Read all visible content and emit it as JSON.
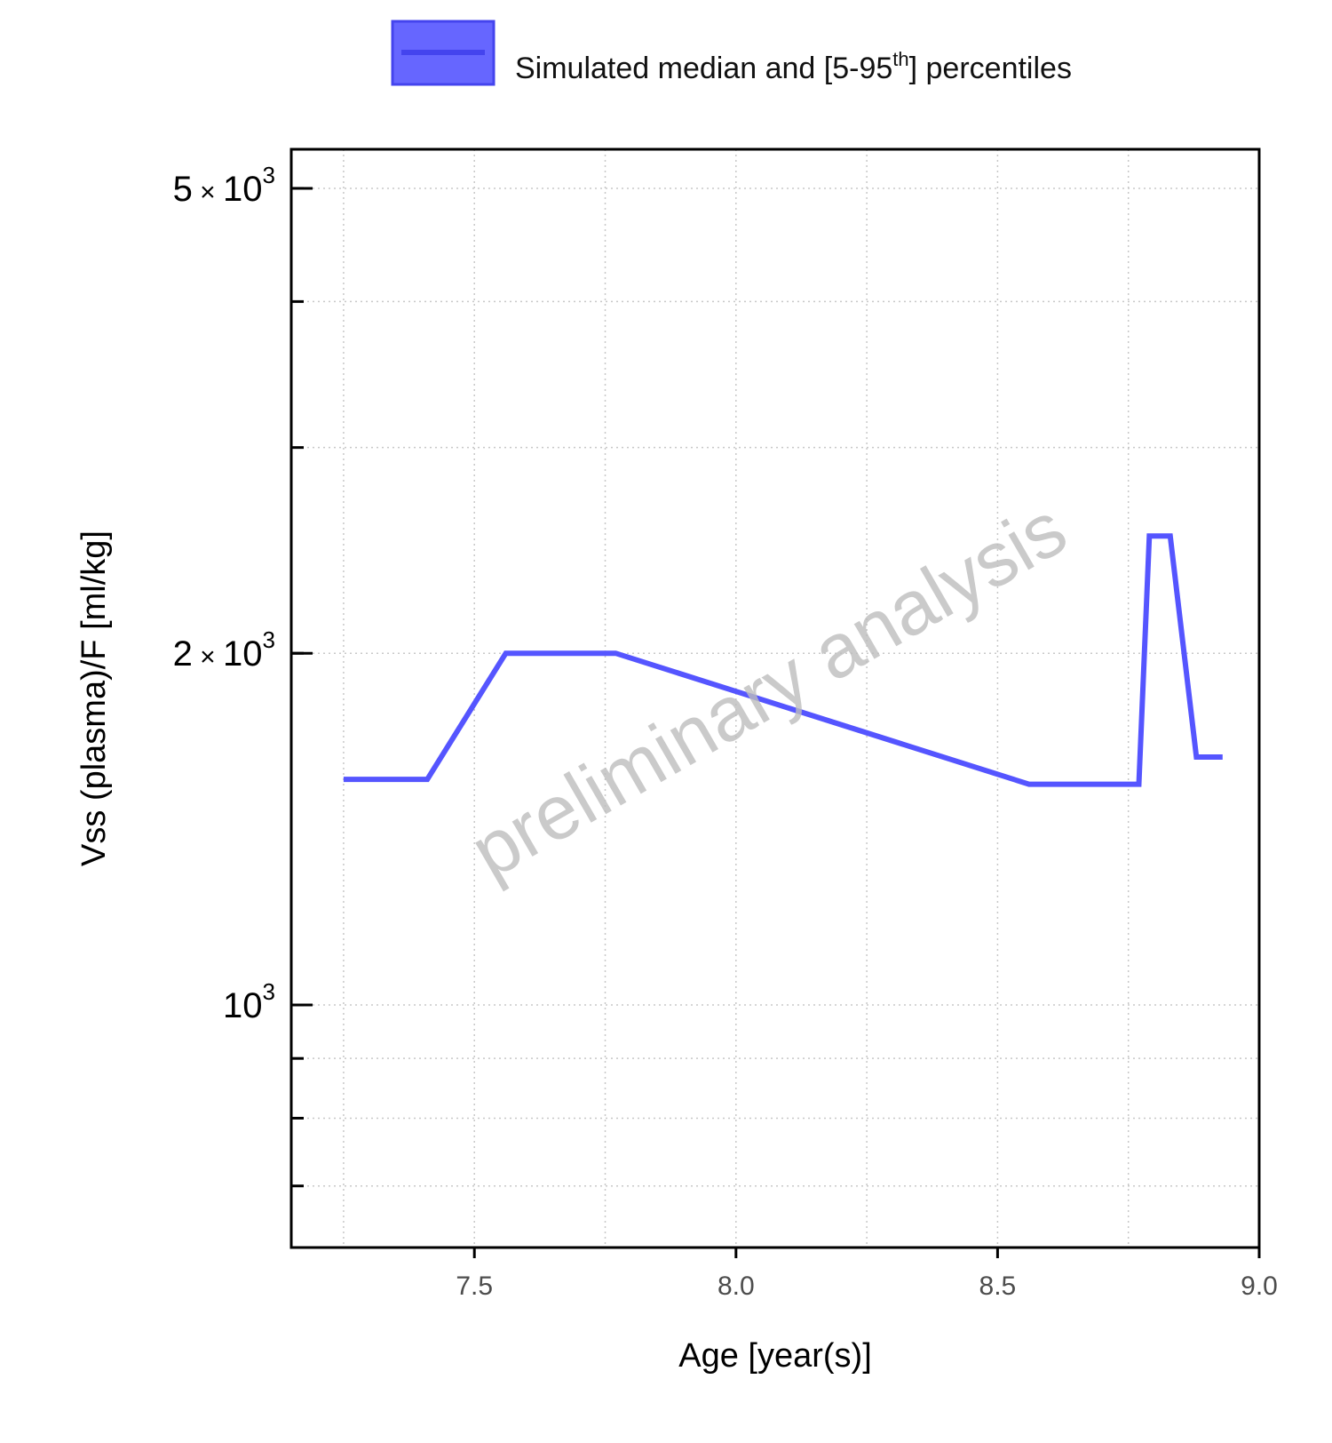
{
  "chart_data": {
    "type": "line",
    "xlabel": "Age [year(s)]",
    "ylabel": "Vss (plasma)/F [ml/kg]",
    "xlim": [
      7.15,
      9.0
    ],
    "ylim": [
      620,
      5400
    ],
    "y_scale": "log",
    "grid": true,
    "legend_position": "top",
    "watermark": "preliminary analysis",
    "x_ticks": [
      7.5,
      8.0,
      8.5,
      9.0
    ],
    "x_tick_labels": [
      "7.5",
      "8.0",
      "8.5",
      "9.0"
    ],
    "y_ticks": [
      {
        "value": 5000,
        "mantissa": "5",
        "exp": "3"
      },
      {
        "value": 2000,
        "mantissa": "2",
        "exp": "3"
      },
      {
        "value": 1000,
        "mantissa": "",
        "exp": "3"
      }
    ],
    "series": [
      {
        "name": "Simulated median and [5-95th] percentiles",
        "color": "#5555ff",
        "x": [
          7.25,
          7.41,
          7.56,
          7.77,
          8.56,
          8.77,
          8.79,
          8.83,
          8.88,
          8.93
        ],
        "y": [
          1560,
          1560,
          2000,
          2000,
          1545,
          1545,
          2520,
          2520,
          1630,
          1630
        ]
      }
    ]
  },
  "legend": {
    "label_main": "Simulated median and [5-95",
    "label_sup": "th",
    "label_end": "] percentiles",
    "swatch_color": "#6666ff",
    "line_color": "#5555ff"
  }
}
